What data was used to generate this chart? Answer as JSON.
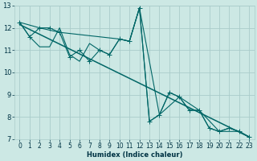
{
  "xlabel": "Humidex (Indice chaleur)",
  "bg_color": "#cce8e4",
  "grid_color": "#aaccca",
  "line_color": "#006666",
  "xlim": [
    -0.5,
    23.5
  ],
  "ylim": [
    7,
    13
  ],
  "x_ticks": [
    0,
    1,
    2,
    3,
    4,
    5,
    6,
    7,
    8,
    9,
    10,
    11,
    12,
    13,
    14,
    15,
    16,
    17,
    18,
    19,
    20,
    21,
    22,
    23
  ],
  "y_ticks": [
    7,
    8,
    9,
    10,
    11,
    12,
    13
  ],
  "series_zigzag": {
    "x": [
      0,
      1,
      2,
      3,
      4,
      5,
      6,
      7,
      8,
      9,
      10,
      11,
      12,
      13,
      14,
      15,
      16,
      17,
      18,
      19,
      20,
      21,
      22,
      23
    ],
    "y": [
      12.25,
      11.6,
      12.0,
      12.0,
      11.8,
      10.7,
      11.0,
      10.5,
      11.0,
      10.8,
      11.5,
      11.4,
      12.9,
      7.8,
      8.1,
      9.1,
      8.9,
      8.3,
      8.3,
      7.5,
      7.35,
      7.5,
      7.35,
      7.1
    ]
  },
  "series_smooth": {
    "x": [
      0,
      1,
      2,
      3,
      4,
      5,
      6,
      7,
      8,
      9,
      10,
      11,
      12,
      13,
      14,
      15,
      16,
      17,
      18,
      19,
      20,
      21,
      22,
      23
    ],
    "y": [
      12.25,
      11.6,
      11.15,
      11.15,
      12.0,
      10.8,
      10.5,
      11.3,
      11.0,
      10.8,
      11.5,
      11.4,
      12.9,
      7.8,
      8.1,
      9.1,
      8.9,
      8.3,
      8.3,
      7.5,
      7.35,
      7.5,
      7.35,
      7.1
    ]
  },
  "trend_line": {
    "x": [
      0,
      23
    ],
    "y": [
      12.15,
      7.1
    ]
  },
  "series_upper": {
    "x": [
      0,
      2,
      4,
      10,
      11,
      12,
      14,
      16,
      18,
      20,
      22,
      23
    ],
    "y": [
      12.25,
      12.0,
      11.8,
      11.5,
      11.4,
      12.9,
      8.1,
      8.9,
      8.3,
      7.35,
      7.35,
      7.1
    ]
  },
  "xlabel_fontsize": 6,
  "tick_fontsize": 5.5,
  "linewidth": 0.8,
  "marker_size": 2.5
}
